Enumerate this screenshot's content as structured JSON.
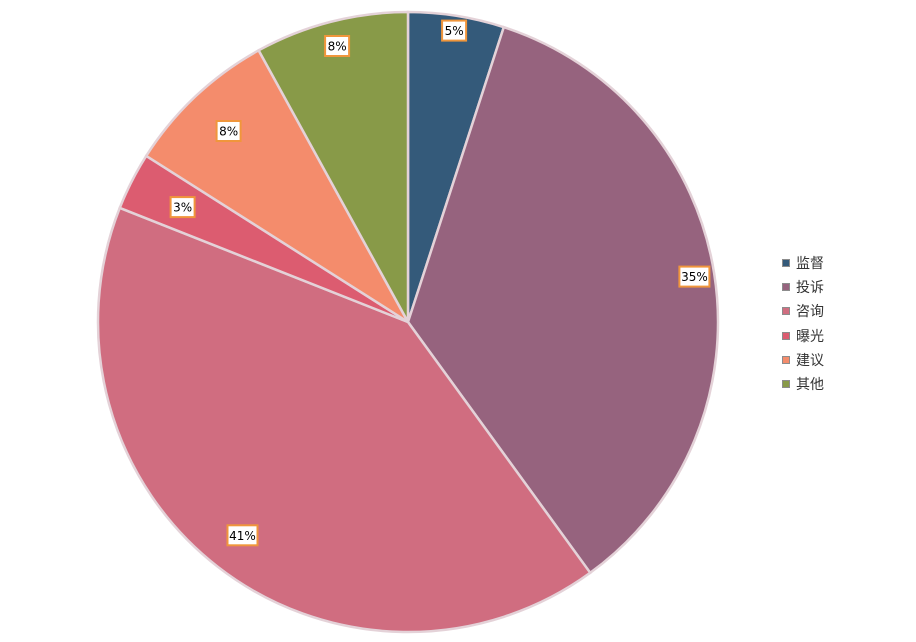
{
  "chart_data": {
    "type": "pie",
    "categories": [
      "监督",
      "投诉",
      "咨询",
      "曝光",
      "建议",
      "其他"
    ],
    "values": [
      5,
      35,
      41,
      3,
      8,
      8
    ],
    "data_labels": [
      "5%",
      "35%",
      "41%",
      "3%",
      "8%",
      "8%"
    ],
    "colors": [
      "#345a7a",
      "#96637e",
      "#d06d80",
      "#dc5c70",
      "#f48c6c",
      "#889a48"
    ],
    "legend": "right",
    "start_angle": "12 o'clock",
    "direction": "clockwise"
  }
}
